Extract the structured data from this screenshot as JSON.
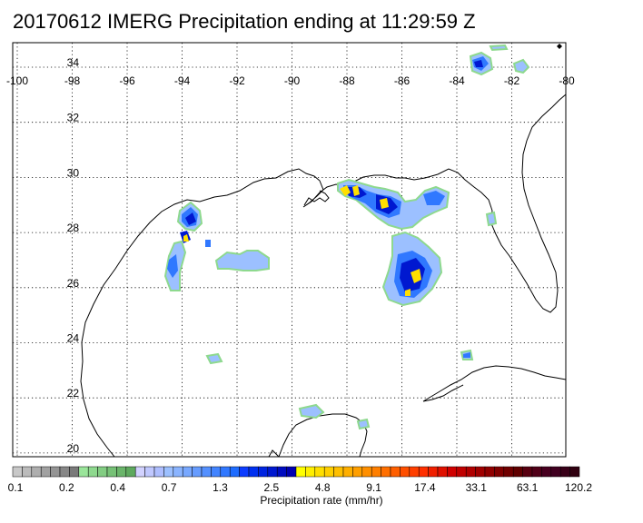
{
  "title": "20170612 IMERG Precipitation ending at 11:29:59 Z",
  "map": {
    "lon_labels": [
      "-100",
      "-98",
      "-96",
      "-94",
      "-92",
      "-90",
      "-88",
      "-86",
      "-84",
      "-82",
      "-80"
    ],
    "lat_labels": [
      "34",
      "32",
      "30",
      "28",
      "26",
      "24",
      "22",
      "20"
    ],
    "grid": true
  },
  "colorbar": {
    "label": "Precipitation rate (mm/hr)",
    "tick_labels": [
      "0.1",
      "0.2",
      "0.4",
      "0.7",
      "1.3",
      "2.5",
      "4.8",
      "9.1",
      "17.4",
      "33.1",
      "63.1",
      "120.2"
    ],
    "colors": [
      "#c8c8c8",
      "#bbbbbb",
      "#aeaeae",
      "#a1a1a1",
      "#949494",
      "#878787",
      "#7a7a7a",
      "#9ae59a",
      "#8ed98e",
      "#82cd82",
      "#76c176",
      "#6ab56a",
      "#5ea95e",
      "#d2d2ff",
      "#c0c8ff",
      "#aebeff",
      "#9cc0ff",
      "#8ab4ff",
      "#78a8ff",
      "#669cff",
      "#5490ff",
      "#4284ff",
      "#3078ff",
      "#1e6cff",
      "#0c3cff",
      "#0030f0",
      "#0024e0",
      "#0018d0",
      "#000cc0",
      "#0000b0",
      "#ffff00",
      "#ffef00",
      "#ffdf00",
      "#ffcf00",
      "#ffbf00",
      "#ffaf00",
      "#ff9f00",
      "#ff8f00",
      "#ff7f00",
      "#ff6f00",
      "#ff5f00",
      "#ff4f00",
      "#ff3f00",
      "#ff2f00",
      "#f01f00",
      "#e01000",
      "#d00000",
      "#c00000",
      "#b00000",
      "#a00000",
      "#900000",
      "#800000",
      "#700000",
      "#600000",
      "#580010",
      "#500018",
      "#480020",
      "#400020",
      "#380018",
      "#300010"
    ]
  }
}
